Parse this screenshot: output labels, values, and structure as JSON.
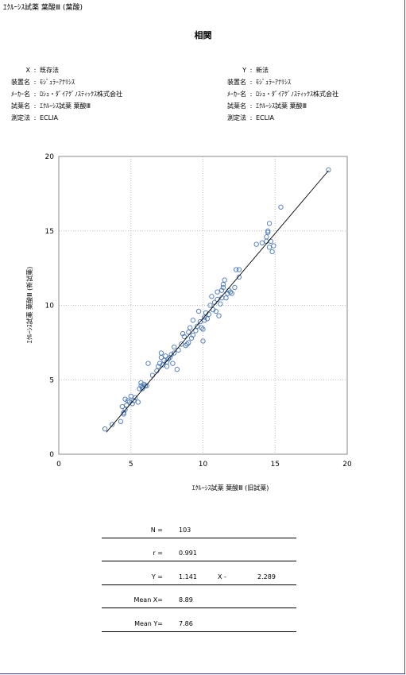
{
  "document_title": "ｴｸﾙｰｼｽ試薬 葉酸Ⅲ (葉酸)",
  "page_title": "相関",
  "info_x": {
    "axis": {
      "label": "X",
      "value": "既存法"
    },
    "device": {
      "label": "装置名",
      "value": "ﾓｼﾞｭﾗｰｱﾅﾘｼｽ"
    },
    "maker": {
      "label": "ﾒｰｶｰ名",
      "value": "ﾛｼｭ・ﾀﾞｲｱｸﾞﾉｽﾃｨｯｸｽ株式会社"
    },
    "reagent": {
      "label": "試薬名",
      "value": "ｴｸﾙｰｼｽ試薬 葉酸Ⅲ"
    },
    "method": {
      "label": "測定法",
      "value": "ECLIA"
    }
  },
  "info_y": {
    "axis": {
      "label": "Y",
      "value": "新法"
    },
    "device": {
      "label": "装置名",
      "value": "ﾓｼﾞｭﾗｰｱﾅﾘｼｽ"
    },
    "maker": {
      "label": "ﾒｰｶｰ名",
      "value": "ﾛｼｭ・ﾀﾞｲｱｸﾞﾉｽﾃｨｯｸｽ株式会社"
    },
    "reagent": {
      "label": "試薬名",
      "value": "ｴｸﾙｰｼｽ試薬 葉酸Ⅲ"
    },
    "method": {
      "label": "測定法",
      "value": "ECLIA"
    }
  },
  "chart_data": {
    "type": "scatter",
    "xlabel": "ｴｸﾙｰｼｽ試薬 葉酸Ⅲ (旧試薬)",
    "ylabel": "ｴｸﾙｰｼｽ試薬 葉酸Ⅲ (新試薬)",
    "xlim": [
      0,
      20
    ],
    "ylim": [
      0,
      20
    ],
    "xticks": [
      0,
      5,
      10,
      15,
      20
    ],
    "yticks": [
      0,
      5,
      10,
      15,
      20
    ],
    "grid": true,
    "marker_color": "#4a78b8",
    "line_color": "#000000",
    "regression": {
      "slope": 1.141,
      "intercept": -2.289,
      "x_range": [
        3.3,
        18.7
      ]
    },
    "points": [
      [
        3.2,
        1.7
      ],
      [
        3.7,
        2.0
      ],
      [
        4.3,
        2.2
      ],
      [
        4.5,
        2.8
      ],
      [
        4.6,
        3.0
      ],
      [
        4.5,
        2.7
      ],
      [
        4.7,
        3.3
      ],
      [
        4.8,
        3.6
      ],
      [
        4.6,
        3.7
      ],
      [
        4.9,
        3.5
      ],
      [
        5.0,
        3.9
      ],
      [
        5.1,
        3.4
      ],
      [
        5.2,
        3.6
      ],
      [
        5.3,
        3.8
      ],
      [
        5.5,
        3.5
      ],
      [
        5.6,
        4.4
      ],
      [
        5.7,
        4.6
      ],
      [
        5.8,
        4.5
      ],
      [
        5.7,
        4.8
      ],
      [
        5.9,
        4.7
      ],
      [
        5.8,
        4.4
      ],
      [
        6.1,
        4.6
      ],
      [
        6.2,
        6.1
      ],
      [
        6.5,
        5.3
      ],
      [
        6.8,
        5.6
      ],
      [
        6.9,
        5.9
      ],
      [
        7.0,
        6.1
      ],
      [
        7.2,
        6.0
      ],
      [
        7.1,
        6.5
      ],
      [
        7.1,
        6.8
      ],
      [
        7.3,
        6.3
      ],
      [
        7.4,
        6.6
      ],
      [
        7.5,
        5.9
      ],
      [
        7.5,
        6.2
      ],
      [
        7.6,
        6.4
      ],
      [
        7.7,
        6.5
      ],
      [
        7.8,
        6.7
      ],
      [
        7.9,
        6.1
      ],
      [
        8.0,
        6.8
      ],
      [
        8.0,
        7.2
      ],
      [
        8.2,
        5.7
      ],
      [
        8.3,
        7.0
      ],
      [
        8.5,
        7.4
      ],
      [
        8.6,
        8.1
      ],
      [
        8.7,
        7.9
      ],
      [
        8.9,
        7.4
      ],
      [
        9.0,
        7.5
      ],
      [
        9.0,
        8.2
      ],
      [
        9.1,
        8.5
      ],
      [
        9.2,
        7.8
      ],
      [
        9.3,
        8.0
      ],
      [
        9.3,
        9.0
      ],
      [
        9.5,
        8.3
      ],
      [
        9.6,
        8.6
      ],
      [
        9.7,
        9.6
      ],
      [
        9.8,
        8.9
      ],
      [
        9.9,
        8.5
      ],
      [
        10.0,
        7.6
      ],
      [
        10.0,
        8.4
      ],
      [
        10.1,
        9.2
      ],
      [
        10.1,
        9.0
      ],
      [
        10.2,
        9.5
      ],
      [
        10.3,
        9.1
      ],
      [
        10.4,
        9.4
      ],
      [
        10.5,
        10.0
      ],
      [
        10.6,
        10.6
      ],
      [
        10.8,
        10.2
      ],
      [
        10.9,
        9.6
      ],
      [
        11.0,
        10.4
      ],
      [
        11.0,
        10.9
      ],
      [
        11.1,
        9.3
      ],
      [
        11.2,
        10.1
      ],
      [
        11.3,
        10.5
      ],
      [
        11.3,
        11.0
      ],
      [
        11.4,
        11.2
      ],
      [
        11.4,
        11.4
      ],
      [
        11.5,
        11.7
      ],
      [
        11.6,
        10.5
      ],
      [
        11.7,
        10.8
      ],
      [
        11.8,
        11.0
      ],
      [
        12.0,
        10.8
      ],
      [
        12.2,
        11.2
      ],
      [
        12.3,
        12.4
      ],
      [
        12.5,
        12.4
      ],
      [
        12.5,
        11.9
      ],
      [
        13.7,
        14.1
      ],
      [
        14.1,
        14.2
      ],
      [
        14.4,
        14.6
      ],
      [
        14.5,
        15.0
      ],
      [
        14.5,
        14.9
      ],
      [
        14.6,
        15.5
      ],
      [
        14.6,
        13.9
      ],
      [
        14.7,
        14.3
      ],
      [
        14.8,
        13.6
      ],
      [
        14.9,
        14.0
      ],
      [
        15.4,
        16.6
      ],
      [
        18.7,
        19.1
      ],
      [
        4.4,
        3.2
      ],
      [
        6.0,
        4.6
      ],
      [
        8.8,
        7.3
      ],
      [
        10.7,
        9.7
      ],
      [
        11.9,
        10.9
      ],
      [
        14.4,
        14.3
      ]
    ]
  },
  "stats": {
    "n": {
      "label": "N =",
      "value": "103"
    },
    "r": {
      "label": "r =",
      "value": "0.991"
    },
    "y": {
      "label": "Y =",
      "value": "1.141",
      "x_label": "X -",
      "intercept": "2.289"
    },
    "mean_x": {
      "label": "Mean X=",
      "value": "8.89"
    },
    "mean_y": {
      "label": "Mean Y=",
      "value": "7.86"
    }
  }
}
